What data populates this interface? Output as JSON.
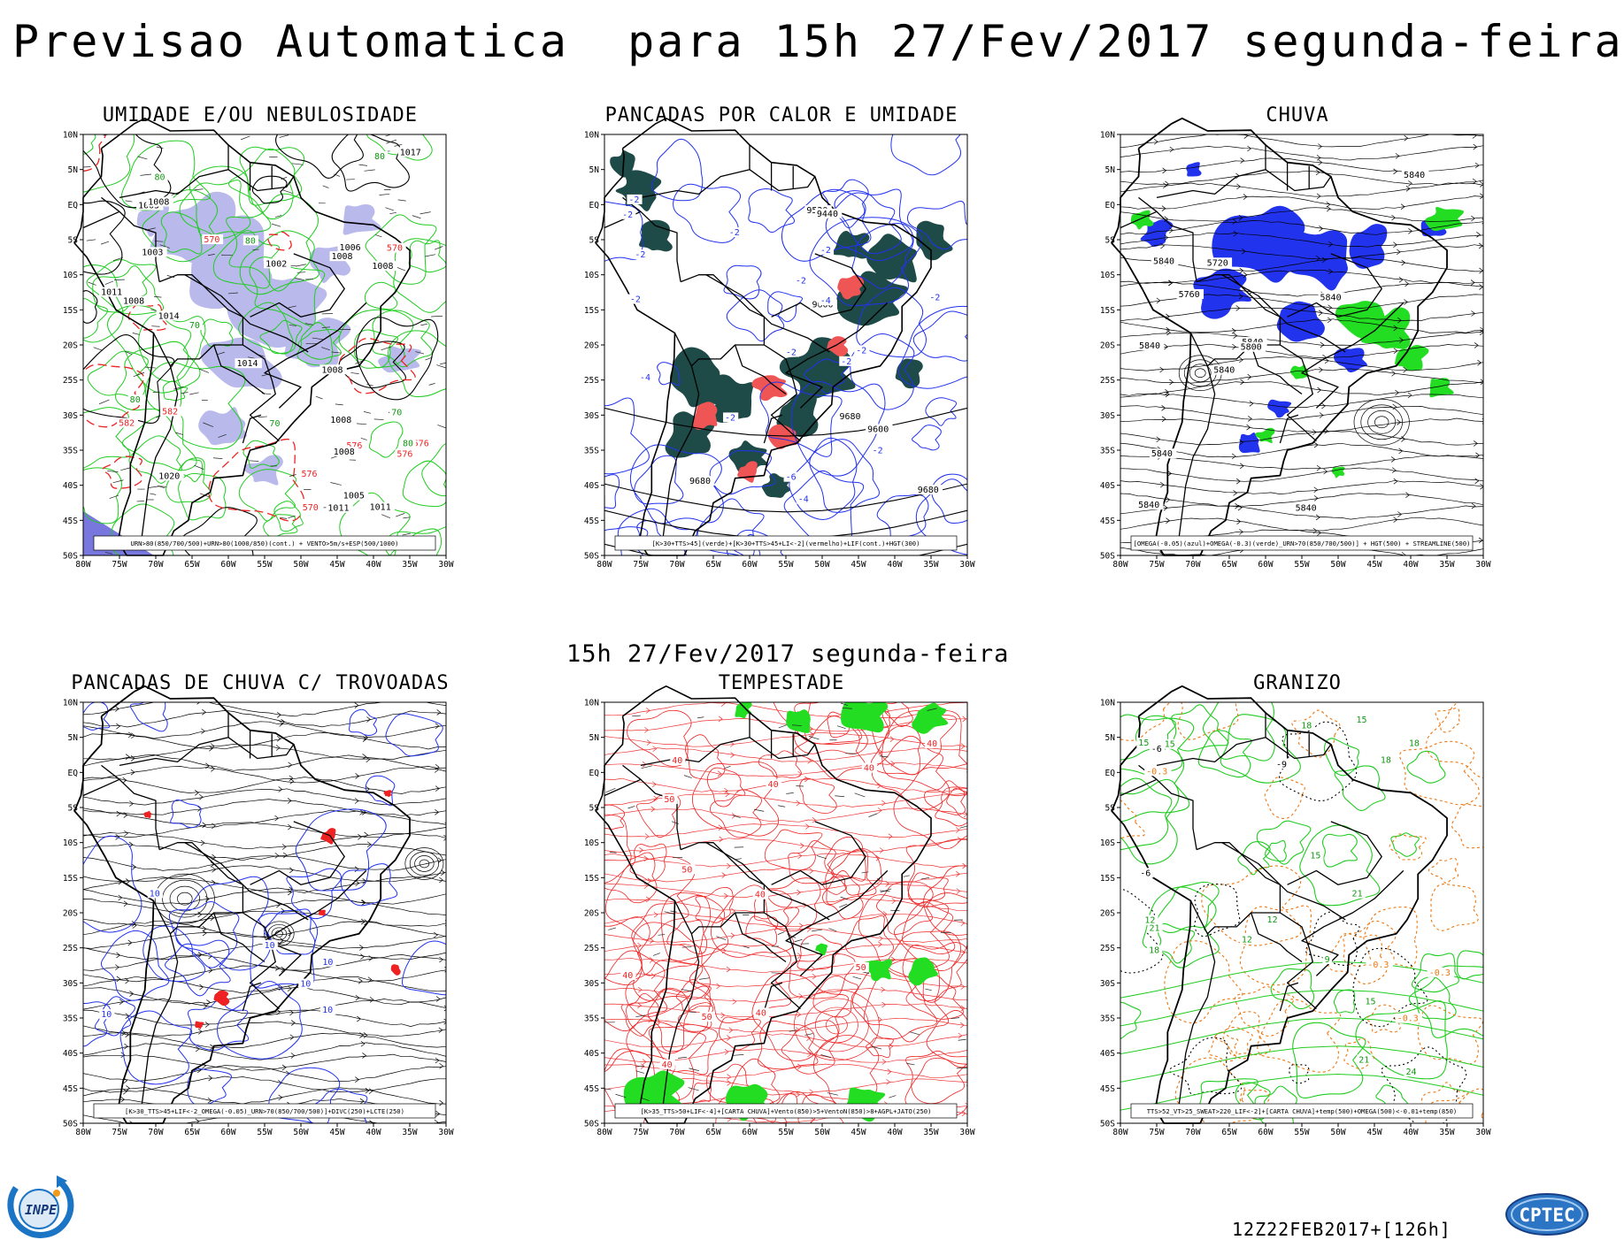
{
  "header": {
    "title": "Previsao Automatica  para 15h 27/Fev/2017 segunda-feira",
    "subtitle": "15h 27/Fev/2017 segunda-feira"
  },
  "axes": {
    "lat_labels": [
      "10N",
      "5N",
      "EQ",
      "5S",
      "10S",
      "15S",
      "20S",
      "25S",
      "30S",
      "35S",
      "40S",
      "45S",
      "50S"
    ],
    "lon_labels": [
      "80W",
      "75W",
      "70W",
      "65W",
      "60W",
      "55W",
      "50W",
      "45W",
      "40W",
      "35W",
      "30W"
    ]
  },
  "colors": {
    "green": "#22cc22",
    "red": "#ee2222",
    "blue": "#2233ee",
    "lavender": "#b9b9ec",
    "darkteal": "#1e4a48",
    "coral": "#f05555",
    "brightgreen": "#22dd22",
    "orange": "#ee7711"
  },
  "panels": [
    {
      "id": "umidade",
      "title": "UMIDADE E/OU NEBULOSIDADE",
      "legend": "URN>80(850/700/500)+URN>80(1000/850)(cont.) + VENTO>5m/s+ESP(500/1000)",
      "labels": [
        {
          "t": "1011",
          "c": "black"
        },
        {
          "t": "576",
          "c": "red"
        },
        {
          "t": "1011",
          "c": "black"
        },
        {
          "t": "576",
          "c": "red"
        },
        {
          "t": "1008",
          "c": "black"
        },
        {
          "t": "1008",
          "c": "black"
        },
        {
          "t": "1008",
          "c": "black"
        },
        {
          "t": "582",
          "c": "red"
        },
        {
          "t": "1002",
          "c": "black"
        },
        {
          "t": "1008",
          "c": "black"
        },
        {
          "t": "1005",
          "c": "black"
        },
        {
          "t": "1008",
          "c": "black"
        },
        {
          "t": "1008",
          "c": "black"
        },
        {
          "t": "576",
          "c": "red"
        },
        {
          "t": "582",
          "c": "red"
        },
        {
          "t": "570",
          "c": "red"
        },
        {
          "t": "1005",
          "c": "black"
        },
        {
          "t": "1014",
          "c": "black"
        },
        {
          "t": "1017",
          "c": "black"
        },
        {
          "t": "570",
          "c": "red"
        },
        {
          "t": "1003",
          "c": "black"
        },
        {
          "t": "576",
          "c": "red"
        },
        {
          "t": "1011",
          "c": "black"
        },
        {
          "t": "570",
          "c": "red"
        },
        {
          "t": "1020",
          "c": "black"
        },
        {
          "t": "1014",
          "c": "black"
        },
        {
          "t": "1006",
          "c": "black"
        },
        {
          "t": "1008",
          "c": "black"
        },
        {
          "t": "80",
          "c": "green"
        },
        {
          "t": "70",
          "c": "green"
        },
        {
          "t": "80",
          "c": "green"
        },
        {
          "t": "80",
          "c": "green"
        },
        {
          "t": "80",
          "c": "green"
        },
        {
          "t": "70",
          "c": "green"
        },
        {
          "t": "80",
          "c": "green"
        },
        {
          "t": "70",
          "c": "green"
        }
      ]
    },
    {
      "id": "pancadas-calor",
      "title": "PANCADAS POR CALOR E UMIDADE",
      "legend": "[K>30+TTS>45](verde)+[K>30+TTS>45+LI<-2](vermelho)+LIF(cont.)+HGT(300)",
      "labels": [
        {
          "t": "-2",
          "c": "blue"
        },
        {
          "t": "-2",
          "c": "blue"
        },
        {
          "t": "-2",
          "c": "blue"
        },
        {
          "t": "9680",
          "c": "black"
        },
        {
          "t": "9680",
          "c": "black"
        },
        {
          "t": "-2",
          "c": "blue"
        },
        {
          "t": "-4",
          "c": "blue"
        },
        {
          "t": "-6",
          "c": "blue"
        },
        {
          "t": "-2",
          "c": "blue"
        },
        {
          "t": "-2",
          "c": "blue"
        },
        {
          "t": "-2",
          "c": "blue"
        },
        {
          "t": "9680",
          "c": "black"
        },
        {
          "t": "9600",
          "c": "black"
        },
        {
          "t": "-2",
          "c": "blue"
        },
        {
          "t": "-4",
          "c": "blue"
        },
        {
          "t": "-2",
          "c": "blue"
        },
        {
          "t": "-2",
          "c": "blue"
        },
        {
          "t": "9600",
          "c": "black"
        },
        {
          "t": "-2",
          "c": "blue"
        },
        {
          "t": "9520",
          "c": "black"
        },
        {
          "t": "9440",
          "c": "black"
        },
        {
          "t": "-2",
          "c": "blue"
        },
        {
          "t": "-4",
          "c": "blue"
        },
        {
          "t": "-2",
          "c": "blue"
        }
      ]
    },
    {
      "id": "chuva",
      "title": "CHUVA",
      "legend": "[OMEGA(-0.05)(azul)+OMEGA(-0.3)(verde)_URN>70(850/700/500)] + HGT(500) + STREAMLINE(500)",
      "labels": [
        {
          "t": "5840",
          "c": "black"
        },
        {
          "t": "5840",
          "c": "black"
        },
        {
          "t": "5840",
          "c": "black"
        },
        {
          "t": "5840",
          "c": "black"
        },
        {
          "t": "5840",
          "c": "black"
        },
        {
          "t": "5840",
          "c": "black"
        },
        {
          "t": "5840",
          "c": "black"
        },
        {
          "t": "5840",
          "c": "black"
        },
        {
          "t": "5840",
          "c": "black"
        },
        {
          "t": "5800",
          "c": "black"
        },
        {
          "t": "5760",
          "c": "black"
        },
        {
          "t": "5720",
          "c": "black"
        }
      ]
    },
    {
      "id": "pancadas-trovoadas",
      "title": "PANCADAS DE CHUVA C/ TROVOADAS",
      "legend": "[K>30_TTS>45+LIF<-2_OMEGA(-0.05)_URN>70(850/700/500)]+DIVC(250)+LCTE(250)",
      "labels": [
        {
          "t": "10",
          "c": "blue"
        },
        {
          "t": "10",
          "c": "blue"
        },
        {
          "t": "10",
          "c": "blue"
        },
        {
          "t": "10",
          "c": "blue"
        },
        {
          "t": "10",
          "c": "blue"
        },
        {
          "t": "10",
          "c": "blue"
        }
      ]
    },
    {
      "id": "tempestade",
      "title": "TEMPESTADE",
      "legend": "[K>35_TTS>50+LIF<-4]+[CARTA CHUVA]+Vento(850)>5+VentoN(850)>8+AGPL+JATO(250)",
      "labels": [
        {
          "t": "40",
          "c": "red"
        },
        {
          "t": "50",
          "c": "red"
        },
        {
          "t": "40",
          "c": "red"
        },
        {
          "t": "50",
          "c": "red"
        },
        {
          "t": "40",
          "c": "red"
        },
        {
          "t": "50",
          "c": "red"
        },
        {
          "t": "40",
          "c": "red"
        },
        {
          "t": "40",
          "c": "red"
        },
        {
          "t": "50",
          "c": "red"
        },
        {
          "t": "40",
          "c": "red"
        },
        {
          "t": "40",
          "c": "red"
        },
        {
          "t": "40",
          "c": "red"
        }
      ]
    },
    {
      "id": "granizo",
      "title": "GRANIZO",
      "legend": "TTS>52_VT>25_SWEAT>220_LIF<-2]+[CARTA CHUVA]+temp(500)+OMEGA(500)<-0.01+temp(850)",
      "labels": [
        {
          "t": "15",
          "c": "green"
        },
        {
          "t": "18",
          "c": "green"
        },
        {
          "t": "-6",
          "c": "black"
        },
        {
          "t": "18",
          "c": "green"
        },
        {
          "t": "15",
          "c": "green"
        },
        {
          "t": "21",
          "c": "green"
        },
        {
          "t": "-0.3",
          "c": "orange"
        },
        {
          "t": "-0.3",
          "c": "orange"
        },
        {
          "t": "-0.3",
          "c": "orange"
        },
        {
          "t": "-0.3",
          "c": "orange"
        },
        {
          "t": "21",
          "c": "green"
        },
        {
          "t": "12",
          "c": "green"
        },
        {
          "t": "15",
          "c": "green"
        },
        {
          "t": "24",
          "c": "green"
        },
        {
          "t": "18",
          "c": "green"
        },
        {
          "t": "12",
          "c": "green"
        },
        {
          "t": "15",
          "c": "green"
        },
        {
          "t": "18",
          "c": "green"
        },
        {
          "t": "21",
          "c": "green"
        },
        {
          "t": "-6",
          "c": "black"
        },
        {
          "t": "-9",
          "c": "black"
        },
        {
          "t": "12",
          "c": "green"
        },
        {
          "t": "15",
          "c": "green"
        },
        {
          "t": "9",
          "c": "green"
        }
      ]
    }
  ],
  "footer": {
    "run": "12Z22FEB2017+[126h]",
    "inpe_logo": "INPE",
    "cptec_logo": "CPTEC"
  }
}
